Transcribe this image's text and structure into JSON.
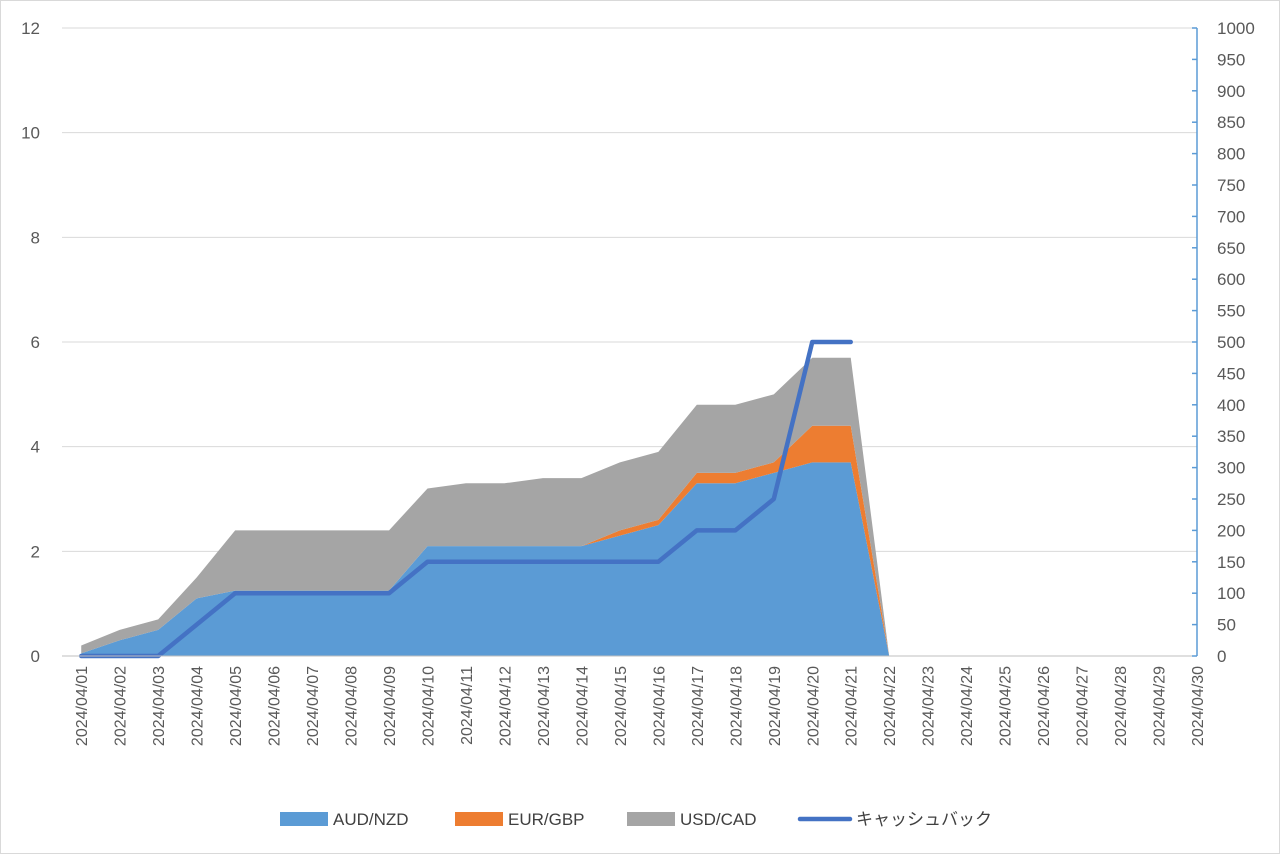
{
  "chart_data": {
    "type": "area",
    "x": [
      "2024/04/01",
      "2024/04/02",
      "2024/04/03",
      "2024/04/04",
      "2024/04/05",
      "2024/04/06",
      "2024/04/07",
      "2024/04/08",
      "2024/04/09",
      "2024/04/10",
      "2024/04/11",
      "2024/04/12",
      "2024/04/13",
      "2024/04/14",
      "2024/04/15",
      "2024/04/16",
      "2024/04/17",
      "2024/04/18",
      "2024/04/19",
      "2024/04/20",
      "2024/04/21",
      "2024/04/22",
      "2024/04/23",
      "2024/04/24",
      "2024/04/25",
      "2024/04/26",
      "2024/04/27",
      "2024/04/28",
      "2024/04/29",
      "2024/04/30"
    ],
    "series": [
      {
        "name": "AUD/NZD",
        "type": "stacked-area",
        "axis": "left",
        "color": "#5b9bd5",
        "values": [
          0.05,
          0.3,
          0.5,
          1.1,
          1.25,
          1.25,
          1.25,
          1.25,
          1.25,
          2.1,
          2.1,
          2.1,
          2.1,
          2.1,
          2.3,
          2.5,
          3.3,
          3.3,
          3.5,
          3.7,
          3.7,
          0,
          null,
          null,
          null,
          null,
          null,
          null,
          null,
          null
        ]
      },
      {
        "name": "EUR/GBP",
        "type": "stacked-area",
        "axis": "left",
        "color": "#ed7d31",
        "values": [
          0,
          0,
          0,
          0,
          0,
          0,
          0,
          0,
          0,
          0,
          0,
          0,
          0,
          0,
          0.1,
          0.1,
          0.2,
          0.2,
          0.2,
          0.7,
          0.7,
          0,
          null,
          null,
          null,
          null,
          null,
          null,
          null,
          null
        ]
      },
      {
        "name": "USD/CAD",
        "type": "stacked-area",
        "axis": "left",
        "color": "#a5a5a5",
        "values": [
          0.15,
          0.2,
          0.2,
          0.4,
          1.15,
          1.15,
          1.15,
          1.15,
          1.15,
          1.1,
          1.2,
          1.2,
          1.3,
          1.3,
          1.3,
          1.3,
          1.3,
          1.3,
          1.3,
          1.3,
          1.3,
          0,
          null,
          null,
          null,
          null,
          null,
          null,
          null,
          null
        ]
      },
      {
        "name": "キャッシュバック",
        "type": "line",
        "axis": "right",
        "color": "#4472c4",
        "values": [
          0,
          0,
          0,
          50,
          100,
          100,
          100,
          100,
          100,
          150,
          150,
          150,
          150,
          150,
          150,
          150,
          200,
          200,
          250,
          500,
          500,
          null,
          null,
          null,
          null,
          null,
          null,
          null,
          null,
          null
        ]
      }
    ],
    "y_left": {
      "min": 0,
      "max": 12,
      "step": 2,
      "ticks": [
        "0",
        "2",
        "4",
        "6",
        "8",
        "10",
        "12"
      ]
    },
    "y_right": {
      "min": 0,
      "max": 1000,
      "step": 50,
      "ticks": [
        "0",
        "50",
        "100",
        "150",
        "200",
        "250",
        "300",
        "350",
        "400",
        "450",
        "500",
        "550",
        "600",
        "650",
        "700",
        "750",
        "800",
        "850",
        "900",
        "950",
        "1000"
      ],
      "axis_color": "#5b9bd5"
    },
    "grid": true,
    "gridline_color": "#d9d9d9",
    "legend_position": "bottom",
    "title": "",
    "xlabel": "",
    "ylabel": ""
  }
}
